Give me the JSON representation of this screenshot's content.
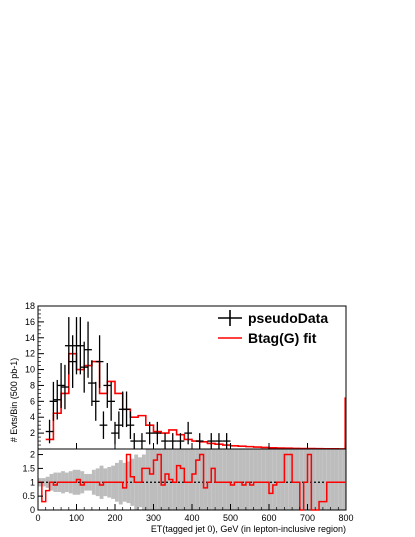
{
  "chart_data": [
    {
      "type": "histogram",
      "xlabel": "ET(tagged jet 0), GeV (in lepton-inclusive region)",
      "ylabel": "# Evts/Bin (500 pb-1)",
      "xlim": [
        0,
        800
      ],
      "ylim": [
        0,
        18
      ],
      "xticks": [
        0,
        100,
        200,
        300,
        400,
        500,
        600,
        700,
        800
      ],
      "yticks": [
        2,
        4,
        6,
        8,
        10,
        12,
        14,
        16,
        18
      ],
      "bin_width": 20,
      "legend": {
        "placement": "top-right",
        "entries": [
          "pseudoData",
          "Btag(G) fit"
        ]
      },
      "series": [
        {
          "name": "pseudoData",
          "style": "points-with-errors",
          "color": "#000000",
          "points": [
            [
              30,
              2.2
            ],
            [
              40,
              6.0
            ],
            [
              50,
              6.2
            ],
            [
              60,
              8.0
            ],
            [
              70,
              7.8
            ],
            [
              80,
              13.0
            ],
            [
              90,
              11.0
            ],
            [
              100,
              13.0
            ],
            [
              110,
              13.0
            ],
            [
              120,
              10.3
            ],
            [
              130,
              12.5
            ],
            [
              140,
              8.3
            ],
            [
              150,
              6.0
            ],
            [
              160,
              11.0
            ],
            [
              170,
              3.0
            ],
            [
              180,
              8.0
            ],
            [
              190,
              6.0
            ],
            [
              200,
              2.0
            ],
            [
              210,
              3.0
            ],
            [
              220,
              5.0
            ],
            [
              230,
              5.0
            ],
            [
              240,
              3.0
            ],
            [
              250,
              1.0
            ],
            [
              270,
              1.0
            ],
            [
              290,
              2.0
            ],
            [
              310,
              2.0
            ],
            [
              330,
              1.0
            ],
            [
              350,
              1.0
            ],
            [
              370,
              1.0
            ],
            [
              390,
              2.0
            ],
            [
              420,
              1.0
            ],
            [
              450,
              1.0
            ],
            [
              470,
              1.0
            ],
            [
              490,
              1.0
            ]
          ]
        },
        {
          "name": "Btag(G) fit",
          "style": "step",
          "color": "#ff0000",
          "bin_edges": [
            20,
            40,
            60,
            80,
            100,
            120,
            140,
            160,
            180,
            200,
            220,
            240,
            260,
            280,
            300,
            320,
            340,
            360,
            380,
            400,
            420,
            440,
            460,
            480,
            500,
            520,
            540,
            560,
            580,
            600,
            620,
            640,
            660,
            680,
            700,
            720,
            740,
            760,
            780,
            800
          ],
          "values": [
            1.2,
            4.5,
            7.0,
            12.0,
            10.0,
            10.5,
            11.0,
            7.0,
            8.5,
            7.0,
            5.0,
            4.0,
            4.2,
            3.0,
            2.2,
            2.0,
            2.4,
            1.8,
            1.2,
            1.0,
            0.9,
            0.7,
            0.6,
            0.5,
            0.4,
            0.35,
            0.3,
            0.25,
            0.2,
            0.15,
            0.12,
            0.1,
            0.08,
            0.06,
            0.05,
            0.04,
            0.03,
            0.02,
            0.01
          ]
        }
      ]
    },
    {
      "type": "ratio-histogram",
      "xlim": [
        0,
        800
      ],
      "ylim": [
        0,
        2.2
      ],
      "yticks": [
        0,
        0.5,
        1,
        1.5,
        2
      ],
      "xticks": [
        0,
        100,
        200,
        300,
        400,
        500,
        600,
        700,
        800
      ],
      "reference_line": 1,
      "series": [
        {
          "name": "",
          "style": "step",
          "color": "#ff0000",
          "bin_edges": [
            0,
            10,
            20,
            30,
            40,
            50,
            60,
            70,
            80,
            90,
            100,
            110,
            120,
            130,
            140,
            150,
            160,
            170,
            180,
            190,
            200,
            210,
            220,
            230,
            240,
            250,
            260,
            270,
            280,
            290,
            300,
            310,
            320,
            330,
            340,
            350,
            360,
            370,
            380,
            390,
            400,
            410,
            420,
            430,
            440,
            450,
            460,
            470,
            480,
            490,
            500,
            510,
            520,
            530,
            540,
            550,
            560,
            570,
            580,
            590,
            600,
            610,
            620,
            630,
            640,
            650,
            660,
            670,
            680,
            690,
            700,
            710,
            720,
            730,
            740,
            750,
            760,
            770,
            780,
            790,
            800
          ],
          "values": [
            1,
            0.3,
            0.7,
            1,
            0.9,
            1,
            1,
            1,
            1,
            1,
            1.1,
            0.9,
            1,
            1,
            1,
            1,
            0.9,
            1,
            1,
            1,
            1,
            1,
            0.8,
            2,
            1.2,
            1,
            1,
            1.5,
            1.5,
            1.3,
            1.8,
            2,
            0.9,
            1.3,
            1.1,
            1,
            1.6,
            1.5,
            1,
            1,
            1.3,
            1.8,
            2,
            0.8,
            1,
            1.5,
            1,
            1,
            1,
            1,
            0.9,
            1,
            1,
            0.9,
            1,
            0.9,
            1,
            1,
            1,
            1,
            0.6,
            0.9,
            1,
            1,
            2.0,
            2.0,
            1.0,
            1.0,
            0,
            1,
            2,
            0,
            0,
            0.3,
            0.3,
            1,
            1,
            1,
            1,
            1
          ]
        }
      ],
      "band": {
        "name": "",
        "color": "#bdbdbd",
        "upper": [
          1.15,
          1.15,
          1.2,
          1.3,
          1.35,
          1.35,
          1.4,
          1.35,
          1.4,
          1.45,
          1.45,
          1.4,
          1.3,
          1.3,
          1.45,
          1.5,
          1.6,
          1.5,
          1.55,
          1.6,
          1.7,
          1.8,
          1.7,
          1.75,
          1.85,
          2.0,
          1.9,
          2.0,
          2.2,
          2.2,
          2.2,
          2.2,
          2.2,
          2.2,
          2.2,
          2.2,
          2.2,
          2.2,
          2.2,
          2.2,
          2.2,
          2.2,
          2.2,
          2.2,
          2.2,
          2.2,
          2.2,
          2.2,
          2.2,
          2.2,
          2.2,
          2.2,
          2.2,
          2.2,
          2.2,
          2.2,
          2.2,
          2.2,
          2.2,
          2.2,
          2.2,
          2.2,
          2.2,
          2.2,
          2.2,
          2.2,
          2.2,
          2.2,
          2.2,
          2.2,
          2.2,
          2.2,
          2.2,
          2.2,
          2.2,
          2.2,
          2.2,
          2.2,
          2.2,
          2.2
        ],
        "lower": [
          0.85,
          0.85,
          0.8,
          0.7,
          0.65,
          0.65,
          0.6,
          0.65,
          0.6,
          0.55,
          0.55,
          0.6,
          0.7,
          0.7,
          0.55,
          0.5,
          0.4,
          0.5,
          0.45,
          0.4,
          0.3,
          0.2,
          0.3,
          0.25,
          0.15,
          0.0,
          0.1,
          0.0,
          0,
          0,
          0,
          0,
          0,
          0,
          0,
          0,
          0,
          0,
          0,
          0,
          0,
          0,
          0,
          0,
          0,
          0,
          0,
          0,
          0,
          0,
          0,
          0,
          0,
          0,
          0,
          0,
          0,
          0,
          0,
          0,
          0,
          0,
          0,
          0,
          0,
          0,
          0,
          0,
          0,
          0,
          0,
          0,
          0,
          0,
          0,
          0,
          0,
          0,
          0,
          0
        ]
      }
    }
  ]
}
